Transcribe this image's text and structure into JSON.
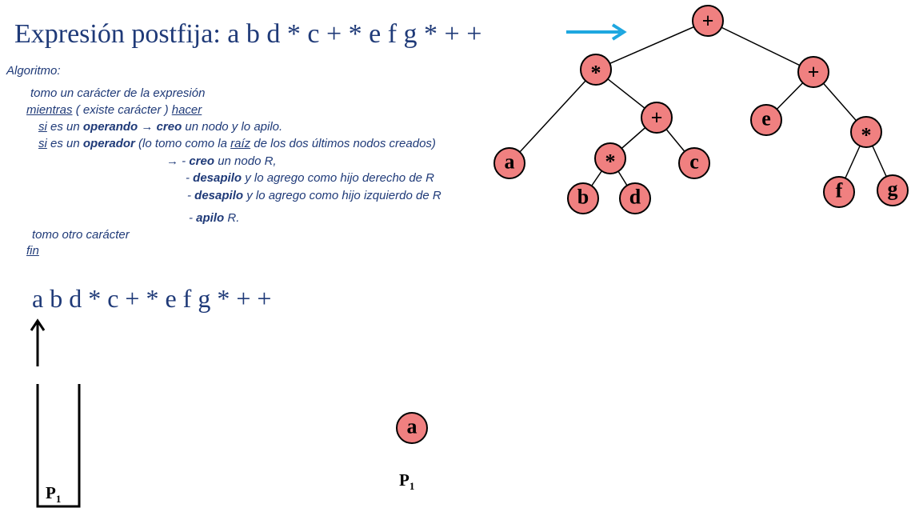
{
  "title": "Expresión postfija:  a b d * c + *  e  f  g * +  +",
  "algorithm": {
    "heading": "Algoritmo:",
    "l1": "tomo un carácter de la expresión",
    "l2_kw1": "mientras",
    "l2_mid": " ( existe carácter ) ",
    "l2_kw2": "hacer",
    "l3_si": "si",
    "l3_a": " es un ",
    "l3_b": "operando",
    "l3_c": " → ",
    "l3_d": "creo",
    "l3_e": " un nodo y lo apilo.",
    "l4_si": "si",
    "l4_a": " es un ",
    "l4_b": "operador",
    "l4_c": " (lo tomo como la ",
    "l4_d": "raíz",
    "l4_e": " de los dos últimos nodos creados)",
    "l5_a": "→  - ",
    "l5_b": "creo",
    "l5_c": " un nodo R,",
    "l6_a": "- ",
    "l6_b": "desapilo",
    "l6_c": " y lo agrego como hijo derecho de R",
    "l7_a": "- ",
    "l7_b": "desapilo",
    "l7_c": " y lo agrego como hijo izquierdo de R",
    "l8_a": "- ",
    "l8_b": "apilo",
    "l8_c": " R.",
    "l9": "tomo otro carácter",
    "l10": "fin"
  },
  "expression": "a b d * c + *  e  f  g * +  +",
  "tree": {
    "root": "+",
    "n_star1": "*",
    "n_plus2": "+",
    "n_e": "e",
    "n_plus_mid": "+",
    "n_a": "a",
    "n_star2": "*",
    "n_c": "c",
    "n_star3": "*",
    "n_b": "b",
    "n_d": "d",
    "n_f": "f",
    "n_g": "g"
  },
  "stack": {
    "label": "P",
    "sub": "1"
  },
  "current_node": {
    "value": "a",
    "label": "P",
    "sub": "1"
  },
  "colors": {
    "text": "#1f3a78",
    "node_fill": "#f08080",
    "arrow": "#1ea7e0"
  }
}
